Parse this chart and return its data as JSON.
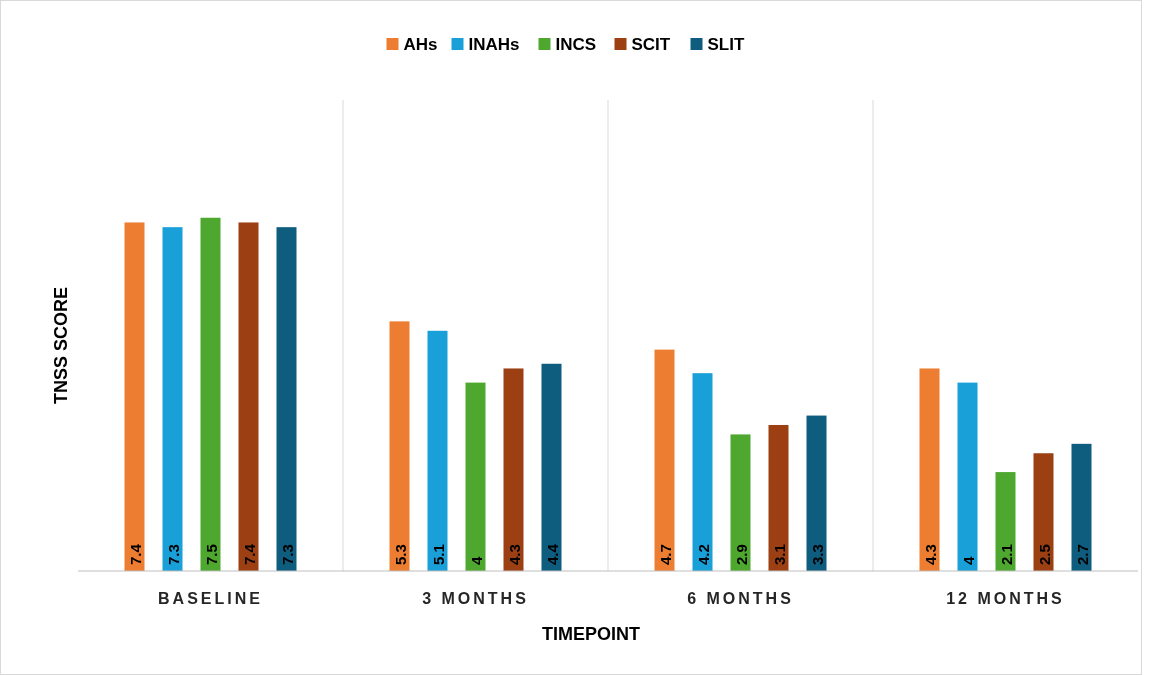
{
  "chart_data": {
    "type": "bar",
    "xlabel": "TIMEPOINT",
    "ylabel": "TNSS SCORE",
    "categories": [
      "BASELINE",
      "3 MONTHS",
      "6 MONTHS",
      "12 MONTHS"
    ],
    "series": [
      {
        "name": "AHs",
        "color": "#ed7d31",
        "values": [
          7.4,
          5.3,
          4.7,
          4.3
        ]
      },
      {
        "name": "INAHs",
        "color": "#19a0d8",
        "values": [
          7.3,
          5.1,
          4.2,
          4
        ]
      },
      {
        "name": "INCS",
        "color": "#4ea72e",
        "values": [
          7.5,
          4,
          2.9,
          2.1
        ]
      },
      {
        "name": "SCIT",
        "color": "#9c3f12",
        "values": [
          7.4,
          4.3,
          3.1,
          2.5
        ]
      },
      {
        "name": "SLIT",
        "color": "#0e5c7e",
        "values": [
          7.3,
          4.4,
          3.3,
          2.7
        ]
      }
    ],
    "ylim": [
      0,
      10
    ],
    "tick_labels": "x",
    "data_labels": true,
    "legend": "top"
  }
}
